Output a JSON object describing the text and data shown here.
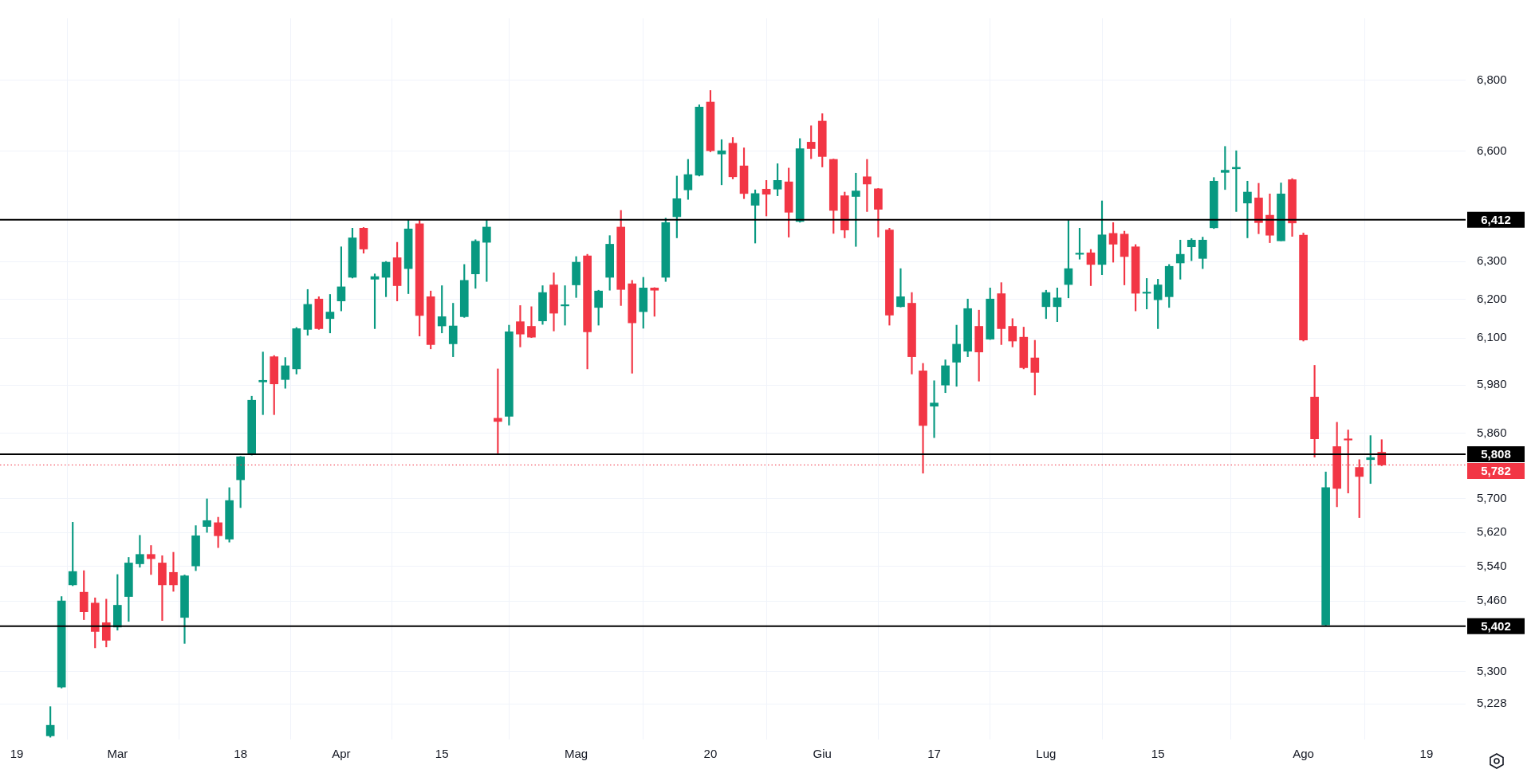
{
  "chart_data": {
    "type": "candlestick",
    "categories": [
      null,
      "19",
      null,
      null,
      null,
      null,
      null,
      null,
      null,
      null,
      "Mar",
      null,
      null,
      null,
      null,
      null,
      null,
      null,
      null,
      null,
      null,
      "18",
      null,
      null,
      null,
      null,
      null,
      null,
      null,
      null,
      "Apr",
      null,
      null,
      null,
      null,
      null,
      null,
      null,
      null,
      "15",
      null,
      null,
      null,
      null,
      null,
      null,
      null,
      null,
      null,
      null,
      null,
      "Mag",
      null,
      null,
      null,
      null,
      null,
      null,
      null,
      null,
      null,
      null,
      null,
      "20",
      null,
      null,
      null,
      null,
      null,
      null,
      null,
      null,
      null,
      "Giu",
      null,
      null,
      null,
      null,
      null,
      null,
      null,
      null,
      null,
      "17",
      null,
      null,
      null,
      null,
      null,
      null,
      null,
      null,
      null,
      "Lug",
      null,
      null,
      null,
      null,
      null,
      null,
      null,
      null,
      null,
      "15",
      null,
      null,
      null,
      null,
      null,
      null,
      null,
      null,
      null,
      null,
      null,
      null,
      "Ago",
      null,
      null,
      null,
      null,
      null,
      null,
      null,
      null,
      null,
      null,
      "19",
      null,
      null,
      null
    ],
    "ohlc": [
      null,
      null,
      null,
      null,
      [
        5158,
        5222,
        5155,
        5181
      ],
      [
        5265,
        5470,
        5263,
        5460
      ],
      [
        5497,
        5644,
        5495,
        5528
      ],
      [
        5480,
        5530,
        5417,
        5435
      ],
      [
        5455,
        5467,
        5353,
        5390
      ],
      [
        5410,
        5464,
        5355,
        5370
      ],
      [
        5400,
        5521,
        5393,
        5450
      ],
      [
        5470,
        5561,
        5413,
        5548
      ],
      [
        5546,
        5613,
        5538,
        5568
      ],
      [
        5568,
        5589,
        5521,
        5558
      ],
      [
        5548,
        5565,
        5415,
        5497
      ],
      [
        5526,
        5573,
        5482,
        5497
      ],
      [
        5422,
        5520,
        5363,
        5518
      ],
      [
        5541,
        5636,
        5530,
        5612
      ],
      [
        5634,
        5700,
        5620,
        5648
      ],
      [
        5643,
        5656,
        5584,
        5612
      ],
      [
        5604,
        5727,
        5597,
        5696
      ],
      [
        5746,
        5803,
        5679,
        5802
      ],
      [
        5807,
        5952,
        5806,
        5942
      ],
      [
        5988,
        6064,
        5906,
        5992
      ],
      [
        6052,
        6055,
        5906,
        5983
      ],
      [
        5994,
        6050,
        5972,
        6029
      ],
      [
        6021,
        6127,
        6008,
        6124
      ],
      [
        6122,
        6226,
        6107,
        6187
      ],
      [
        6201,
        6207,
        6122,
        6124
      ],
      [
        6150,
        6213,
        6113,
        6167
      ],
      [
        6196,
        6339,
        6170,
        6233
      ],
      [
        6258,
        6389,
        6256,
        6363
      ],
      [
        6389,
        6391,
        6322,
        6333
      ],
      [
        6253,
        6267,
        6124,
        6260
      ],
      [
        6258,
        6300,
        6207,
        6298
      ],
      [
        6310,
        6351,
        6196,
        6236
      ],
      [
        6281,
        6410,
        6215,
        6387
      ],
      [
        6401,
        6410,
        6105,
        6158
      ],
      [
        6207,
        6222,
        6072,
        6083
      ],
      [
        6131,
        6236,
        6113,
        6155
      ],
      [
        6085,
        6190,
        6052,
        6131
      ],
      [
        6155,
        6292,
        6153,
        6250
      ],
      [
        6267,
        6358,
        6229,
        6354
      ],
      [
        6351,
        6410,
        6247,
        6392
      ],
      [
        5897,
        6021,
        5811,
        5889
      ],
      [
        5902,
        6133,
        5880,
        6116
      ],
      [
        6142,
        6184,
        6077,
        6110
      ],
      [
        6130,
        6181,
        6101,
        6102
      ],
      [
        6144,
        6236,
        6135,
        6218
      ],
      [
        6238,
        6270,
        6118,
        6164
      ],
      [
        6183,
        6236,
        6133,
        6186
      ],
      [
        6238,
        6313,
        6205,
        6298
      ],
      [
        6315,
        6319,
        6021,
        6116
      ],
      [
        6179,
        6224,
        6133,
        6222
      ],
      [
        6258,
        6369,
        6224,
        6346
      ],
      [
        6392,
        6437,
        6184,
        6226
      ],
      [
        6241,
        6250,
        6010,
        6139
      ],
      [
        6168,
        6258,
        6125,
        6230
      ],
      [
        6230,
        6231,
        6156,
        6224
      ],
      [
        6258,
        6416,
        6247,
        6404
      ],
      [
        6420,
        6531,
        6363,
        6469
      ],
      [
        6493,
        6577,
        6467,
        6535
      ],
      [
        6533,
        6730,
        6531,
        6724
      ],
      [
        6738,
        6771,
        6598,
        6601
      ],
      [
        6592,
        6632,
        6507,
        6601
      ],
      [
        6622,
        6638,
        6523,
        6529
      ],
      [
        6559,
        6609,
        6469,
        6483
      ],
      [
        6451,
        6493,
        6349,
        6483
      ],
      [
        6495,
        6519,
        6422,
        6481
      ],
      [
        6495,
        6565,
        6477,
        6519
      ],
      [
        6515,
        6553,
        6365,
        6432
      ],
      [
        6407,
        6635,
        6405,
        6607
      ],
      [
        6625,
        6671,
        6579,
        6607
      ],
      [
        6684,
        6705,
        6556,
        6585
      ],
      [
        6577,
        6578,
        6375,
        6437
      ],
      [
        6477,
        6487,
        6363,
        6384
      ],
      [
        6475,
        6539,
        6340,
        6490
      ],
      [
        6529,
        6577,
        6434,
        6509
      ],
      [
        6496,
        6497,
        6365,
        6440
      ],
      [
        6384,
        6389,
        6133,
        6159
      ],
      [
        6181,
        6281,
        6180,
        6207
      ],
      [
        6190,
        6218,
        6008,
        6052
      ],
      [
        6016,
        6035,
        5762,
        5879
      ],
      [
        5927,
        5991,
        5849,
        5935
      ],
      [
        5980,
        6044,
        5961,
        6029
      ],
      [
        6038,
        6133,
        5977,
        6084
      ],
      [
        6066,
        6201,
        6052,
        6176
      ],
      [
        6130,
        6172,
        5990,
        6064
      ],
      [
        6097,
        6230,
        6096,
        6201
      ],
      [
        6215,
        6244,
        6083,
        6124
      ],
      [
        6130,
        6150,
        6077,
        6092
      ],
      [
        6102,
        6128,
        6021,
        6024
      ],
      [
        6049,
        6094,
        5955,
        6012
      ],
      [
        6181,
        6224,
        6150,
        6218
      ],
      [
        6181,
        6230,
        6142,
        6204
      ],
      [
        6239,
        6410,
        6204,
        6281
      ],
      [
        6319,
        6389,
        6306,
        6321
      ],
      [
        6323,
        6332,
        6236,
        6292
      ],
      [
        6292,
        6463,
        6265,
        6371
      ],
      [
        6375,
        6404,
        6298,
        6346
      ],
      [
        6373,
        6381,
        6238,
        6313
      ],
      [
        6339,
        6345,
        6170,
        6216
      ],
      [
        6216,
        6255,
        6175,
        6219
      ],
      [
        6199,
        6253,
        6124,
        6238
      ],
      [
        6207,
        6292,
        6179,
        6287
      ],
      [
        6296,
        6357,
        6253,
        6319
      ],
      [
        6339,
        6361,
        6302,
        6357
      ],
      [
        6308,
        6365,
        6281,
        6357
      ],
      [
        6390,
        6527,
        6388,
        6517
      ],
      [
        6541,
        6613,
        6494,
        6547
      ],
      [
        6551,
        6601,
        6434,
        6555
      ],
      [
        6457,
        6517,
        6363,
        6487
      ],
      [
        6471,
        6511,
        6374,
        6404
      ],
      [
        6424,
        6482,
        6350,
        6370
      ],
      [
        6355,
        6512,
        6355,
        6482
      ],
      [
        6521,
        6524,
        6367,
        6403
      ],
      [
        6370,
        6376,
        6092,
        6095
      ],
      [
        5950,
        6030,
        5801,
        5846
      ],
      [
        5405,
        5765,
        5404,
        5727
      ],
      [
        5827,
        5887,
        5681,
        5725
      ],
      [
        5846,
        5868,
        5714,
        5843
      ],
      [
        5776,
        5795,
        5655,
        5754
      ],
      [
        5795,
        5854,
        5737,
        5800
      ],
      [
        5813,
        5844,
        5780,
        5782
      ],
      null,
      null,
      null,
      null,
      null,
      null,
      null
    ],
    "ylim": [
      5150,
      6980
    ],
    "yticks": [
      {
        "value": 5228,
        "label": "5,228"
      },
      {
        "value": 5300,
        "label": "5,300"
      },
      {
        "value": 5460,
        "label": "5,460"
      },
      {
        "value": 5540,
        "label": "5,540"
      },
      {
        "value": 5620,
        "label": "5,620"
      },
      {
        "value": 5700,
        "label": "5,700"
      },
      {
        "value": 5860,
        "label": "5,860"
      },
      {
        "value": 5980,
        "label": "5,980"
      },
      {
        "value": 6100,
        "label": "6,100"
      },
      {
        "value": 6200,
        "label": "6,200"
      },
      {
        "value": 6300,
        "label": "6,300"
      },
      {
        "value": 6600,
        "label": "6,600"
      },
      {
        "value": 6800,
        "label": "6,800"
      }
    ],
    "log": true,
    "grid": true,
    "ref_lines": [
      {
        "axis": "y",
        "value": 6412,
        "label": "6,412",
        "color": "#000000"
      },
      {
        "axis": "y",
        "value": 5808,
        "label": "5,808",
        "color": "#000000"
      },
      {
        "axis": "y",
        "value": 5402,
        "label": "5,402",
        "color": "#000000"
      },
      {
        "axis": "y",
        "value": 5782,
        "label": "5,782",
        "color": "#f23645",
        "line_style": "dotted"
      }
    ]
  }
}
